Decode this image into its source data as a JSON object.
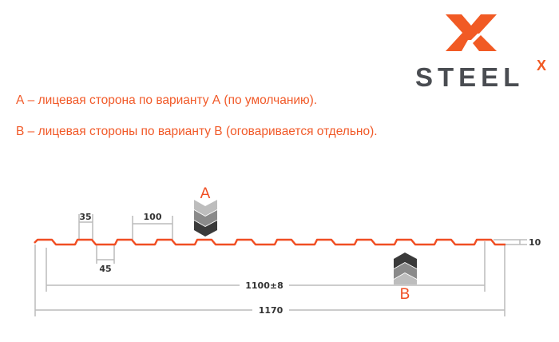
{
  "logo": {
    "text": "STEEL",
    "superscript": "X",
    "colors": {
      "mark": "#f15a24",
      "text": "#4a4d52"
    }
  },
  "notes": [
    "А – лицевая сторона по варианту А (по умолчанию).",
    "В – лицевая стороны по варианту В (оговаривается отдельно)."
  ],
  "diagram": {
    "profile_color": "#f04e23",
    "dimension_color": "#bbbbbb",
    "face_a_label": "A",
    "face_b_label": "B",
    "dimensions": {
      "rib_top": "35",
      "pitch": "100",
      "rib_bottom": "45",
      "height": "10",
      "useful_width": "1100±8",
      "total_width": "1170"
    }
  }
}
